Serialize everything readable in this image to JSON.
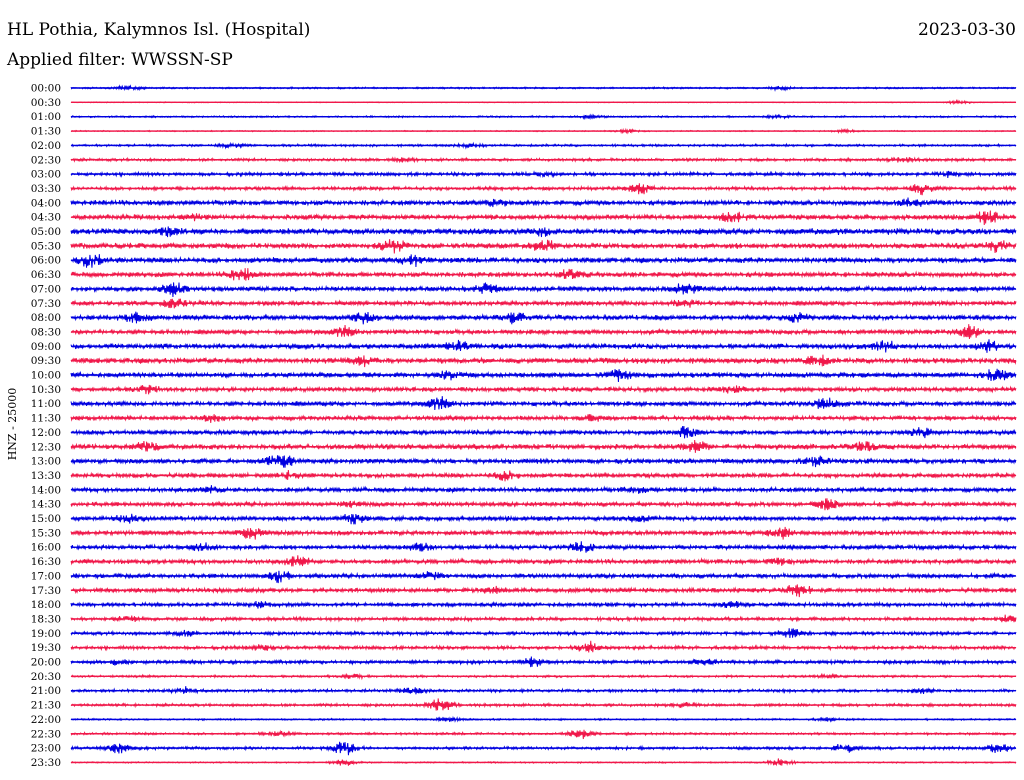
{
  "header": {
    "station": "HL Pothia, Kalymnos Isl. (Hospital)",
    "date": "2023-03-30",
    "filter": "Applied filter: WWSSN-SP"
  },
  "chart_data": {
    "type": "line",
    "title": "HL Pothia, Kalymnos Isl. (Hospital)",
    "ylabel": "HNZ - 25000",
    "row_colors": [
      "#0000e0",
      "#f0184a"
    ],
    "rows": [
      {
        "label": "00:00",
        "amplitude": 0.15,
        "events": [
          {
            "pos": 0.06,
            "amp": 0.4
          },
          {
            "pos": 0.75,
            "amp": 0.35
          }
        ]
      },
      {
        "label": "00:30",
        "amplitude": 0.08,
        "events": [
          {
            "pos": 0.94,
            "amp": 0.3
          }
        ]
      },
      {
        "label": "01:00",
        "amplitude": 0.15,
        "events": [
          {
            "pos": 0.55,
            "amp": 0.3
          },
          {
            "pos": 0.75,
            "amp": 0.25
          }
        ]
      },
      {
        "label": "01:30",
        "amplitude": 0.1,
        "events": [
          {
            "pos": 0.59,
            "amp": 0.3
          },
          {
            "pos": 0.82,
            "amp": 0.25
          }
        ]
      },
      {
        "label": "02:00",
        "amplitude": 0.2,
        "events": [
          {
            "pos": 0.17,
            "amp": 0.35
          },
          {
            "pos": 0.42,
            "amp": 0.3
          }
        ]
      },
      {
        "label": "02:30",
        "amplitude": 0.25,
        "events": [
          {
            "pos": 0.88,
            "amp": 0.45
          },
          {
            "pos": 0.35,
            "amp": 0.3
          }
        ]
      },
      {
        "label": "03:00",
        "amplitude": 0.3,
        "events": [
          {
            "pos": 0.93,
            "amp": 0.45
          },
          {
            "pos": 0.5,
            "amp": 0.35
          }
        ]
      },
      {
        "label": "03:30",
        "amplitude": 0.3,
        "events": [
          {
            "pos": 0.6,
            "amp": 1.2
          },
          {
            "pos": 0.9,
            "amp": 1.0
          }
        ]
      },
      {
        "label": "04:00",
        "amplitude": 0.45,
        "events": [
          {
            "pos": 0.89,
            "amp": 0.9
          },
          {
            "pos": 0.45,
            "amp": 0.5
          }
        ]
      },
      {
        "label": "04:30",
        "amplitude": 0.45,
        "events": [
          {
            "pos": 0.7,
            "amp": 0.9
          },
          {
            "pos": 0.97,
            "amp": 1.1
          },
          {
            "pos": 0.13,
            "amp": 0.6
          }
        ]
      },
      {
        "label": "05:00",
        "amplitude": 0.55,
        "events": [
          {
            "pos": 0.1,
            "amp": 0.8
          },
          {
            "pos": 0.5,
            "amp": 0.7
          }
        ]
      },
      {
        "label": "05:30",
        "amplitude": 0.5,
        "events": [
          {
            "pos": 0.34,
            "amp": 1.2
          },
          {
            "pos": 0.5,
            "amp": 1.0
          },
          {
            "pos": 0.98,
            "amp": 0.9
          }
        ]
      },
      {
        "label": "06:00",
        "amplitude": 0.5,
        "events": [
          {
            "pos": 0.02,
            "amp": 1.3
          },
          {
            "pos": 0.36,
            "amp": 0.9
          }
        ]
      },
      {
        "label": "06:30",
        "amplitude": 0.45,
        "events": [
          {
            "pos": 0.18,
            "amp": 1.4
          },
          {
            "pos": 0.53,
            "amp": 0.9
          }
        ]
      },
      {
        "label": "07:00",
        "amplitude": 0.45,
        "events": [
          {
            "pos": 0.11,
            "amp": 1.3
          },
          {
            "pos": 0.44,
            "amp": 0.9
          },
          {
            "pos": 0.65,
            "amp": 1.1
          }
        ]
      },
      {
        "label": "07:30",
        "amplitude": 0.4,
        "events": [
          {
            "pos": 0.11,
            "amp": 0.9
          },
          {
            "pos": 0.65,
            "amp": 0.8
          }
        ]
      },
      {
        "label": "08:00",
        "amplitude": 0.45,
        "events": [
          {
            "pos": 0.07,
            "amp": 0.9
          },
          {
            "pos": 0.31,
            "amp": 1.1
          },
          {
            "pos": 0.47,
            "amp": 1.0
          },
          {
            "pos": 0.77,
            "amp": 0.9
          }
        ]
      },
      {
        "label": "08:30",
        "amplitude": 0.4,
        "events": [
          {
            "pos": 0.29,
            "amp": 1.0
          },
          {
            "pos": 0.95,
            "amp": 1.2
          }
        ]
      },
      {
        "label": "09:00",
        "amplitude": 0.45,
        "events": [
          {
            "pos": 0.41,
            "amp": 1.0
          },
          {
            "pos": 0.86,
            "amp": 0.9
          },
          {
            "pos": 0.97,
            "amp": 1.2
          }
        ]
      },
      {
        "label": "09:30",
        "amplitude": 0.5,
        "events": [
          {
            "pos": 0.31,
            "amp": 0.9
          },
          {
            "pos": 0.79,
            "amp": 1.1
          }
        ]
      },
      {
        "label": "10:00",
        "amplitude": 0.45,
        "events": [
          {
            "pos": 0.58,
            "amp": 1.1
          },
          {
            "pos": 0.98,
            "amp": 1.3
          },
          {
            "pos": 0.4,
            "amp": 0.7
          }
        ]
      },
      {
        "label": "10:30",
        "amplitude": 0.4,
        "events": [
          {
            "pos": 0.08,
            "amp": 0.8
          },
          {
            "pos": 0.7,
            "amp": 0.6
          }
        ]
      },
      {
        "label": "11:00",
        "amplitude": 0.4,
        "events": [
          {
            "pos": 0.39,
            "amp": 1.2
          },
          {
            "pos": 0.8,
            "amp": 1.1
          }
        ]
      },
      {
        "label": "11:30",
        "amplitude": 0.4,
        "events": [
          {
            "pos": 0.15,
            "amp": 0.6
          },
          {
            "pos": 0.55,
            "amp": 0.5
          }
        ]
      },
      {
        "label": "12:00",
        "amplitude": 0.4,
        "events": [
          {
            "pos": 0.65,
            "amp": 1.1
          },
          {
            "pos": 0.9,
            "amp": 1.0
          }
        ]
      },
      {
        "label": "12:30",
        "amplitude": 0.45,
        "events": [
          {
            "pos": 0.66,
            "amp": 1.3
          },
          {
            "pos": 0.84,
            "amp": 1.1
          },
          {
            "pos": 0.08,
            "amp": 0.7
          }
        ]
      },
      {
        "label": "13:00",
        "amplitude": 0.45,
        "events": [
          {
            "pos": 0.22,
            "amp": 1.6
          },
          {
            "pos": 0.79,
            "amp": 0.9
          }
        ]
      },
      {
        "label": "13:30",
        "amplitude": 0.4,
        "events": [
          {
            "pos": 0.46,
            "amp": 0.9
          },
          {
            "pos": 0.23,
            "amp": 0.6
          }
        ]
      },
      {
        "label": "14:00",
        "amplitude": 0.4,
        "events": [
          {
            "pos": 0.15,
            "amp": 0.6
          },
          {
            "pos": 0.6,
            "amp": 0.5
          }
        ]
      },
      {
        "label": "14:30",
        "amplitude": 0.4,
        "events": [
          {
            "pos": 0.8,
            "amp": 1.1
          },
          {
            "pos": 0.3,
            "amp": 0.6
          }
        ]
      },
      {
        "label": "15:00",
        "amplitude": 0.4,
        "events": [
          {
            "pos": 0.06,
            "amp": 0.7
          },
          {
            "pos": 0.3,
            "amp": 0.8
          },
          {
            "pos": 0.6,
            "amp": 0.6
          }
        ]
      },
      {
        "label": "15:30",
        "amplitude": 0.4,
        "events": [
          {
            "pos": 0.19,
            "amp": 1.0
          },
          {
            "pos": 0.75,
            "amp": 1.2
          }
        ]
      },
      {
        "label": "16:00",
        "amplitude": 0.4,
        "events": [
          {
            "pos": 0.54,
            "amp": 1.1
          },
          {
            "pos": 0.14,
            "amp": 0.8
          },
          {
            "pos": 0.37,
            "amp": 0.7
          }
        ]
      },
      {
        "label": "16:30",
        "amplitude": 0.4,
        "events": [
          {
            "pos": 0.24,
            "amp": 1.0
          },
          {
            "pos": 0.75,
            "amp": 0.6
          }
        ]
      },
      {
        "label": "17:00",
        "amplitude": 0.4,
        "events": [
          {
            "pos": 0.22,
            "amp": 1.0
          },
          {
            "pos": 0.38,
            "amp": 0.7
          }
        ]
      },
      {
        "label": "17:30",
        "amplitude": 0.4,
        "events": [
          {
            "pos": 0.77,
            "amp": 1.3
          },
          {
            "pos": 0.45,
            "amp": 0.6
          }
        ]
      },
      {
        "label": "18:00",
        "amplitude": 0.35,
        "events": [
          {
            "pos": 0.2,
            "amp": 0.5
          },
          {
            "pos": 0.7,
            "amp": 0.5
          }
        ]
      },
      {
        "label": "18:30",
        "amplitude": 0.3,
        "events": [
          {
            "pos": 0.06,
            "amp": 0.5
          },
          {
            "pos": 0.99,
            "amp": 0.6
          }
        ]
      },
      {
        "label": "19:00",
        "amplitude": 0.3,
        "events": [
          {
            "pos": 0.76,
            "amp": 1.0
          },
          {
            "pos": 0.12,
            "amp": 0.5
          }
        ]
      },
      {
        "label": "19:30",
        "amplitude": 0.3,
        "events": [
          {
            "pos": 0.55,
            "amp": 1.2
          },
          {
            "pos": 0.2,
            "amp": 0.5
          }
        ]
      },
      {
        "label": "20:00",
        "amplitude": 0.3,
        "events": [
          {
            "pos": 0.49,
            "amp": 0.9
          },
          {
            "pos": 0.67,
            "amp": 0.6
          },
          {
            "pos": 0.05,
            "amp": 0.5
          }
        ]
      },
      {
        "label": "20:30",
        "amplitude": 0.2,
        "events": [
          {
            "pos": 0.3,
            "amp": 0.4
          },
          {
            "pos": 0.8,
            "amp": 0.35
          }
        ]
      },
      {
        "label": "21:00",
        "amplitude": 0.25,
        "events": [
          {
            "pos": 0.36,
            "amp": 0.7
          },
          {
            "pos": 0.12,
            "amp": 0.6
          },
          {
            "pos": 0.9,
            "amp": 0.5
          }
        ]
      },
      {
        "label": "21:30",
        "amplitude": 0.25,
        "events": [
          {
            "pos": 0.39,
            "amp": 1.3
          },
          {
            "pos": 0.65,
            "amp": 0.4
          }
        ]
      },
      {
        "label": "22:00",
        "amplitude": 0.15,
        "events": [
          {
            "pos": 0.4,
            "amp": 0.4
          },
          {
            "pos": 0.8,
            "amp": 0.3
          }
        ]
      },
      {
        "label": "22:30",
        "amplitude": 0.2,
        "events": [
          {
            "pos": 0.54,
            "amp": 0.9
          },
          {
            "pos": 0.22,
            "amp": 0.5
          }
        ]
      },
      {
        "label": "23:00",
        "amplitude": 0.25,
        "events": [
          {
            "pos": 0.05,
            "amp": 1.1
          },
          {
            "pos": 0.29,
            "amp": 1.5
          },
          {
            "pos": 0.82,
            "amp": 0.9
          },
          {
            "pos": 0.98,
            "amp": 0.9
          }
        ]
      },
      {
        "label": "23:30",
        "amplitude": 0.12,
        "events": [
          {
            "pos": 0.29,
            "amp": 0.7
          },
          {
            "pos": 0.75,
            "amp": 0.8
          }
        ]
      }
    ]
  }
}
